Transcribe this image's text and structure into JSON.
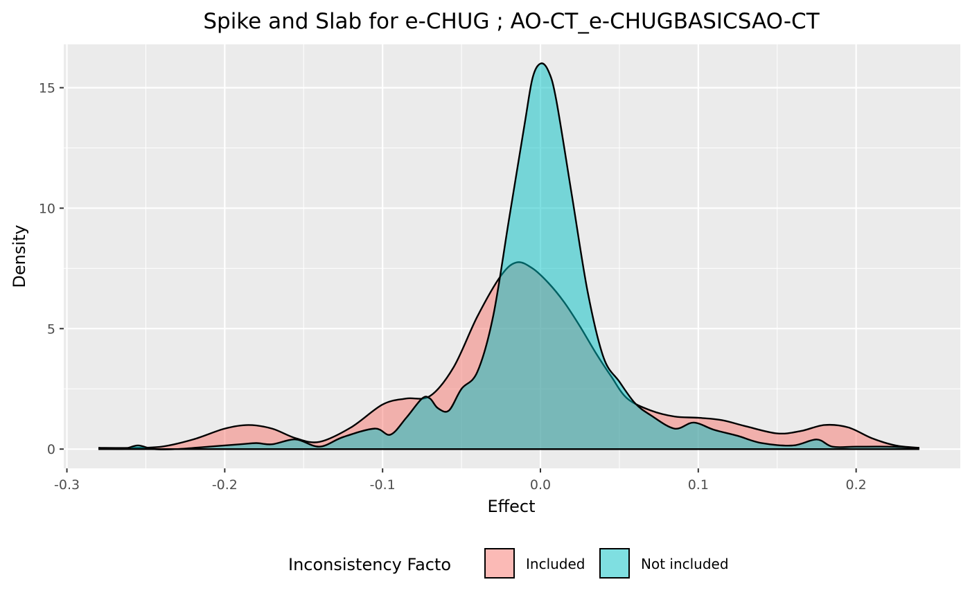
{
  "chart_data": {
    "type": "area",
    "title": "Spike and Slab for e-CHUG ; AO-CT_e-CHUGBASICSAO-CT",
    "xlabel": "Effect",
    "ylabel": "Density",
    "xlim": [
      -0.302,
      0.266
    ],
    "ylim": [
      -0.8,
      16.8
    ],
    "x_ticks": [
      -0.3,
      -0.2,
      -0.1,
      0.0,
      0.1,
      0.2
    ],
    "x_tick_labels": [
      "-0.3",
      "-0.2",
      "-0.1",
      "0.0",
      "0.1",
      "0.2"
    ],
    "y_ticks": [
      0,
      5,
      10,
      15
    ],
    "y_tick_labels": [
      "0",
      "5",
      "10",
      "15"
    ],
    "grid": true,
    "legend": {
      "title": "Inconsistency Facto",
      "position": "bottom",
      "entries": [
        "Included",
        "Not included"
      ]
    },
    "series": [
      {
        "name": "Included",
        "color": "#F8766D",
        "x": [
          -0.28,
          -0.26,
          -0.24,
          -0.22,
          -0.2,
          -0.185,
          -0.17,
          -0.155,
          -0.14,
          -0.12,
          -0.1,
          -0.085,
          -0.07,
          -0.055,
          -0.04,
          -0.025,
          -0.015,
          -0.005,
          0.005,
          0.015,
          0.025,
          0.035,
          0.045,
          0.055,
          0.07,
          0.085,
          0.1,
          0.115,
          0.13,
          0.15,
          0.165,
          0.18,
          0.195,
          0.21,
          0.225,
          0.24
        ],
        "y": [
          0.05,
          0.05,
          0.1,
          0.4,
          0.85,
          1.0,
          0.85,
          0.45,
          0.3,
          0.9,
          1.85,
          2.1,
          2.2,
          3.4,
          5.5,
          7.2,
          7.75,
          7.5,
          6.9,
          6.1,
          5.1,
          4.0,
          3.0,
          2.1,
          1.6,
          1.35,
          1.3,
          1.2,
          0.95,
          0.65,
          0.75,
          1.0,
          0.9,
          0.45,
          0.15,
          0.05
        ]
      },
      {
        "name": "Not included",
        "color": "#00BFC4",
        "x": [
          -0.28,
          -0.265,
          -0.255,
          -0.245,
          -0.23,
          -0.21,
          -0.19,
          -0.18,
          -0.17,
          -0.155,
          -0.14,
          -0.125,
          -0.105,
          -0.095,
          -0.085,
          -0.075,
          -0.07,
          -0.065,
          -0.058,
          -0.05,
          -0.04,
          -0.03,
          -0.02,
          -0.01,
          -0.005,
          0.0,
          0.005,
          0.01,
          0.02,
          0.03,
          0.04,
          0.05,
          0.06,
          0.07,
          0.085,
          0.097,
          0.11,
          0.125,
          0.14,
          0.16,
          0.175,
          0.185,
          0.2,
          0.22,
          0.24
        ],
        "y": [
          0.05,
          0.0,
          0.15,
          0.0,
          0.0,
          0.1,
          0.2,
          0.25,
          0.2,
          0.4,
          0.1,
          0.5,
          0.85,
          0.6,
          1.3,
          2.1,
          2.1,
          1.7,
          1.6,
          2.5,
          3.2,
          5.5,
          9.5,
          13.5,
          15.4,
          16.0,
          15.7,
          14.5,
          10.5,
          6.5,
          3.8,
          2.8,
          1.9,
          1.4,
          0.85,
          1.1,
          0.8,
          0.55,
          0.25,
          0.15,
          0.4,
          0.1,
          0.1,
          0.1,
          0.05
        ]
      }
    ]
  }
}
